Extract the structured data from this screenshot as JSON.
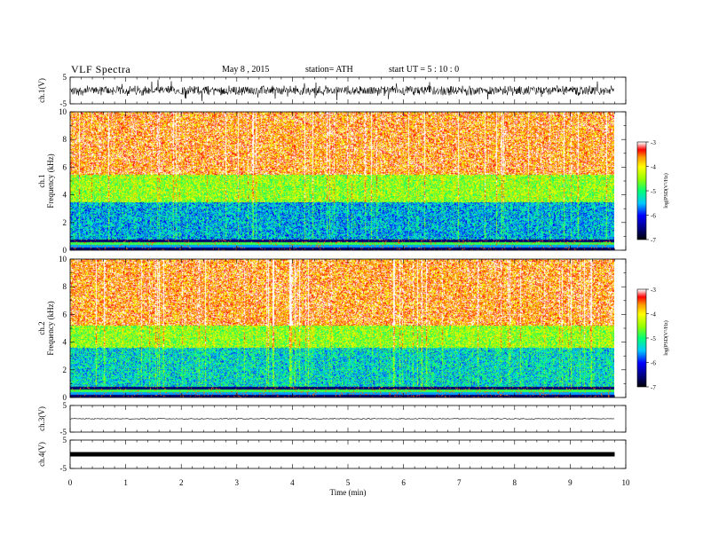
{
  "header": {
    "title": "VLF  Spectra",
    "date": "May 8  , 2015",
    "station": "station= ATH",
    "start": "start  UT  =   5  : 10 : 0"
  },
  "chart_data": [
    {
      "type": "line",
      "id": "ch1-waveform",
      "ylabel": "ch.1(V)",
      "ylim": [
        -5,
        5
      ],
      "yticks": [
        "5",
        "-5"
      ],
      "xlim": [
        0,
        10
      ],
      "baseline": 0,
      "amplitude": "high"
    },
    {
      "type": "heatmap",
      "id": "ch1-spectrogram",
      "ylabel_lines": [
        "ch.1",
        "Frequency  (kHz)"
      ],
      "ylim": [
        0,
        10
      ],
      "yticks": [
        "0",
        "2",
        "4",
        "6",
        "8",
        "10"
      ],
      "xlim": [
        0,
        10
      ],
      "data_end_min": 9.8,
      "colorbar": {
        "label": "log(PSD(V²/Hz)",
        "range": [
          -7,
          -3
        ],
        "ticks": [
          "-3",
          "-4",
          "-5",
          "-6",
          "-7"
        ]
      },
      "bands": [
        {
          "freq_range": [
            0,
            0.8
          ],
          "level": "striped-low"
        },
        {
          "freq_range": [
            0.8,
            3.5
          ],
          "level": "-5.5"
        },
        {
          "freq_range": [
            3.5,
            5.5
          ],
          "level": "-4.5"
        },
        {
          "freq_range": [
            5.5,
            10
          ],
          "level": "-3.5"
        }
      ]
    },
    {
      "type": "heatmap",
      "id": "ch2-spectrogram",
      "ylabel_lines": [
        "ch.2",
        "Frequency  (kHz)"
      ],
      "ylim": [
        0,
        10
      ],
      "yticks": [
        "0",
        "2",
        "4",
        "6",
        "8",
        "10"
      ],
      "xlim": [
        0,
        10
      ],
      "data_end_min": 9.8,
      "colorbar": {
        "label": "log(PSD(V²/Hz)",
        "range": [
          -7,
          -3
        ],
        "ticks": [
          "-3",
          "-4",
          "-5",
          "-6",
          "-7"
        ]
      },
      "bands": [
        {
          "freq_range": [
            0,
            0.8
          ],
          "level": "striped-low"
        },
        {
          "freq_range": [
            0.8,
            3.6
          ],
          "level": "-5.3"
        },
        {
          "freq_range": [
            3.6,
            5.2
          ],
          "level": "-4.5"
        },
        {
          "freq_range": [
            5.2,
            10
          ],
          "level": "-3.5"
        }
      ]
    },
    {
      "type": "line",
      "id": "ch3-waveform",
      "ylabel": "ch.3(V)",
      "ylim": [
        -5,
        5
      ],
      "yticks": [
        "5",
        "-5"
      ],
      "xlim": [
        0,
        10
      ],
      "baseline": 0,
      "amplitude": "low"
    },
    {
      "type": "line",
      "id": "ch4-waveform",
      "ylabel": "ch.4(V)",
      "ylim": [
        -5,
        5
      ],
      "yticks": [
        "5",
        "-5"
      ],
      "xlim": [
        0,
        10
      ],
      "baseline": 0,
      "amplitude": "saturated-thick"
    }
  ],
  "xaxis": {
    "label": "Time  (min)",
    "ticks": [
      "0",
      "1",
      "2",
      "3",
      "4",
      "5",
      "6",
      "7",
      "8",
      "9",
      "10"
    ]
  },
  "colors": {
    "axis": "#000000",
    "red": "#ff0000",
    "yellow": "#ffff00",
    "green": "#00ff66",
    "cyan": "#00e0ff",
    "blue": "#0000ff",
    "darkblue": "#000066"
  }
}
